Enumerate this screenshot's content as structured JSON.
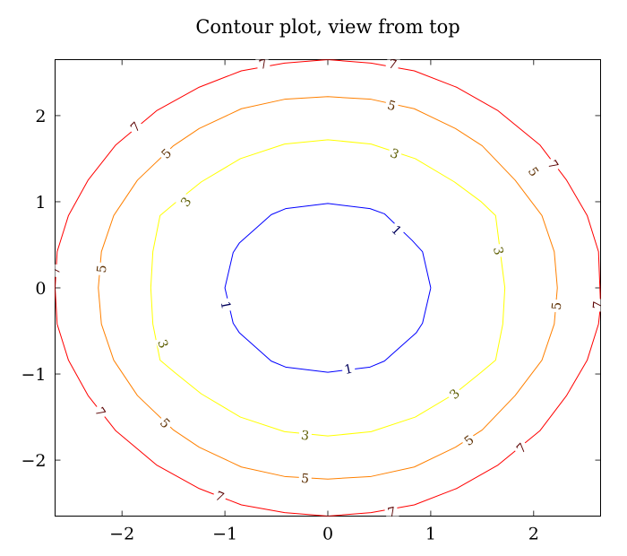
{
  "chart_data": {
    "type": "contour",
    "title": "Contour plot, view from top",
    "xlabel": "",
    "ylabel": "",
    "xlim": [
      -2.65,
      2.65
    ],
    "ylim": [
      -2.65,
      2.65
    ],
    "xticks": [
      -2,
      -1,
      0,
      1,
      2
    ],
    "yticks": [
      -2,
      -1,
      0,
      1,
      2
    ],
    "grid": false,
    "levels": [
      {
        "level": 1,
        "color": "#0000ff",
        "text_color": "#00005a",
        "label": "1",
        "points": [
          [
            1.0,
            0.0
          ],
          [
            0.92,
            0.42
          ],
          [
            0.82,
            0.55
          ],
          [
            0.55,
            0.86
          ],
          [
            0.41,
            0.92
          ],
          [
            0.0,
            0.98
          ],
          [
            -0.41,
            0.92
          ],
          [
            -0.55,
            0.85
          ],
          [
            -0.86,
            0.52
          ],
          [
            -0.92,
            0.41
          ],
          [
            -1.0,
            0.0
          ],
          [
            -0.92,
            -0.41
          ],
          [
            -0.86,
            -0.52
          ],
          [
            -0.55,
            -0.85
          ],
          [
            -0.41,
            -0.92
          ],
          [
            0.0,
            -0.98
          ],
          [
            0.41,
            -0.92
          ],
          [
            0.55,
            -0.85
          ],
          [
            0.86,
            -0.52
          ],
          [
            0.92,
            -0.41
          ],
          [
            1.0,
            0.0
          ]
        ],
        "label_positions": [
          [
            0.67,
            0.67
          ],
          [
            -0.99,
            -0.2
          ],
          [
            0.2,
            -0.94
          ]
        ]
      },
      {
        "level": 3,
        "color": "#ffff00",
        "text_color": "#5c5c00",
        "label": "3",
        "points": [
          [
            1.72,
            0.0
          ],
          [
            1.63,
            0.84
          ],
          [
            1.49,
            1.0
          ],
          [
            1.23,
            1.23
          ],
          [
            0.85,
            1.5
          ],
          [
            0.42,
            1.67
          ],
          [
            0.0,
            1.72
          ],
          [
            -0.42,
            1.67
          ],
          [
            -0.85,
            1.5
          ],
          [
            -1.23,
            1.23
          ],
          [
            -1.49,
            0.98
          ],
          [
            -1.63,
            0.84
          ],
          [
            -1.7,
            0.42
          ],
          [
            -1.72,
            0.0
          ],
          [
            -1.7,
            -0.42
          ],
          [
            -1.63,
            -0.84
          ],
          [
            -1.49,
            -0.98
          ],
          [
            -1.23,
            -1.23
          ],
          [
            -0.85,
            -1.5
          ],
          [
            -0.42,
            -1.67
          ],
          [
            0.0,
            -1.72
          ],
          [
            0.42,
            -1.67
          ],
          [
            0.85,
            -1.5
          ],
          [
            1.23,
            -1.23
          ],
          [
            1.49,
            -0.98
          ],
          [
            1.63,
            -0.84
          ],
          [
            1.7,
            -0.42
          ],
          [
            1.72,
            0.0
          ]
        ],
        "label_positions": [
          [
            0.65,
            1.56
          ],
          [
            -1.38,
            1.0
          ],
          [
            1.66,
            0.43
          ],
          [
            -1.6,
            -0.65
          ],
          [
            1.23,
            -1.23
          ],
          [
            -0.22,
            -1.71
          ]
        ]
      },
      {
        "level": 5,
        "color": "#ff8000",
        "text_color": "#5c2e00",
        "label": "5",
        "points": [
          [
            2.23,
            0.0
          ],
          [
            2.2,
            0.42
          ],
          [
            2.08,
            0.84
          ],
          [
            1.82,
            1.25
          ],
          [
            1.5,
            1.65
          ],
          [
            1.24,
            1.85
          ],
          [
            0.84,
            2.08
          ],
          [
            0.42,
            2.19
          ],
          [
            0.0,
            2.22
          ],
          [
            -0.42,
            2.19
          ],
          [
            -0.84,
            2.08
          ],
          [
            -1.25,
            1.85
          ],
          [
            -1.5,
            1.65
          ],
          [
            -1.85,
            1.25
          ],
          [
            -2.08,
            0.84
          ],
          [
            -2.2,
            0.42
          ],
          [
            -2.23,
            0.0
          ],
          [
            -2.2,
            -0.42
          ],
          [
            -2.08,
            -0.84
          ],
          [
            -1.85,
            -1.25
          ],
          [
            -1.5,
            -1.65
          ],
          [
            -1.25,
            -1.85
          ],
          [
            -0.84,
            -2.08
          ],
          [
            -0.42,
            -2.19
          ],
          [
            0.0,
            -2.22
          ],
          [
            0.42,
            -2.19
          ],
          [
            0.84,
            -2.08
          ],
          [
            1.24,
            -1.85
          ],
          [
            1.5,
            -1.65
          ],
          [
            1.82,
            -1.25
          ],
          [
            2.08,
            -0.84
          ],
          [
            2.2,
            -0.42
          ],
          [
            2.23,
            0.0
          ]
        ],
        "label_positions": [
          [
            0.62,
            2.12
          ],
          [
            -1.57,
            1.56
          ],
          [
            2.0,
            1.35
          ],
          [
            -2.2,
            0.22
          ],
          [
            2.22,
            -0.21
          ],
          [
            -1.58,
            -1.57
          ],
          [
            1.37,
            -1.77
          ],
          [
            -0.22,
            -2.21
          ]
        ]
      },
      {
        "level": 7,
        "color": "#ff0000",
        "text_color": "#5a0000",
        "label": "7",
        "points": [
          [
            2.65,
            -0.2
          ],
          [
            2.63,
            0.42
          ],
          [
            2.52,
            0.84
          ],
          [
            2.32,
            1.25
          ],
          [
            2.06,
            1.66
          ],
          [
            1.65,
            2.06
          ],
          [
            1.25,
            2.33
          ],
          [
            0.84,
            2.52
          ],
          [
            0.42,
            2.61
          ],
          [
            0.0,
            2.65
          ],
          [
            -0.42,
            2.61
          ],
          [
            -0.84,
            2.52
          ],
          [
            -1.25,
            2.33
          ],
          [
            -1.66,
            2.06
          ],
          [
            -2.06,
            1.66
          ],
          [
            -2.33,
            1.25
          ],
          [
            -2.52,
            0.84
          ],
          [
            -2.63,
            0.42
          ],
          [
            -2.65,
            0.0
          ],
          [
            -2.63,
            -0.42
          ],
          [
            -2.52,
            -0.84
          ],
          [
            -2.33,
            -1.25
          ],
          [
            -2.06,
            -1.66
          ],
          [
            -1.66,
            -2.06
          ],
          [
            -1.25,
            -2.33
          ],
          [
            -0.84,
            -2.52
          ],
          [
            -0.42,
            -2.61
          ],
          [
            0.0,
            -2.65
          ],
          [
            0.42,
            -2.61
          ],
          [
            0.84,
            -2.52
          ],
          [
            1.25,
            -2.33
          ],
          [
            1.65,
            -2.06
          ],
          [
            2.06,
            -1.66
          ],
          [
            2.32,
            -1.25
          ],
          [
            2.52,
            -0.84
          ],
          [
            2.63,
            -0.42
          ],
          [
            2.65,
            -0.2
          ]
        ],
        "label_positions": [
          [
            -0.63,
            2.6
          ],
          [
            0.63,
            2.6
          ],
          [
            -1.87,
            1.87
          ],
          [
            2.19,
            1.43
          ],
          [
            -2.65,
            0.2
          ],
          [
            2.62,
            -0.2
          ],
          [
            -2.21,
            -1.44
          ],
          [
            1.88,
            -1.86
          ],
          [
            -1.05,
            -2.42
          ],
          [
            0.62,
            -2.6
          ]
        ]
      }
    ]
  }
}
